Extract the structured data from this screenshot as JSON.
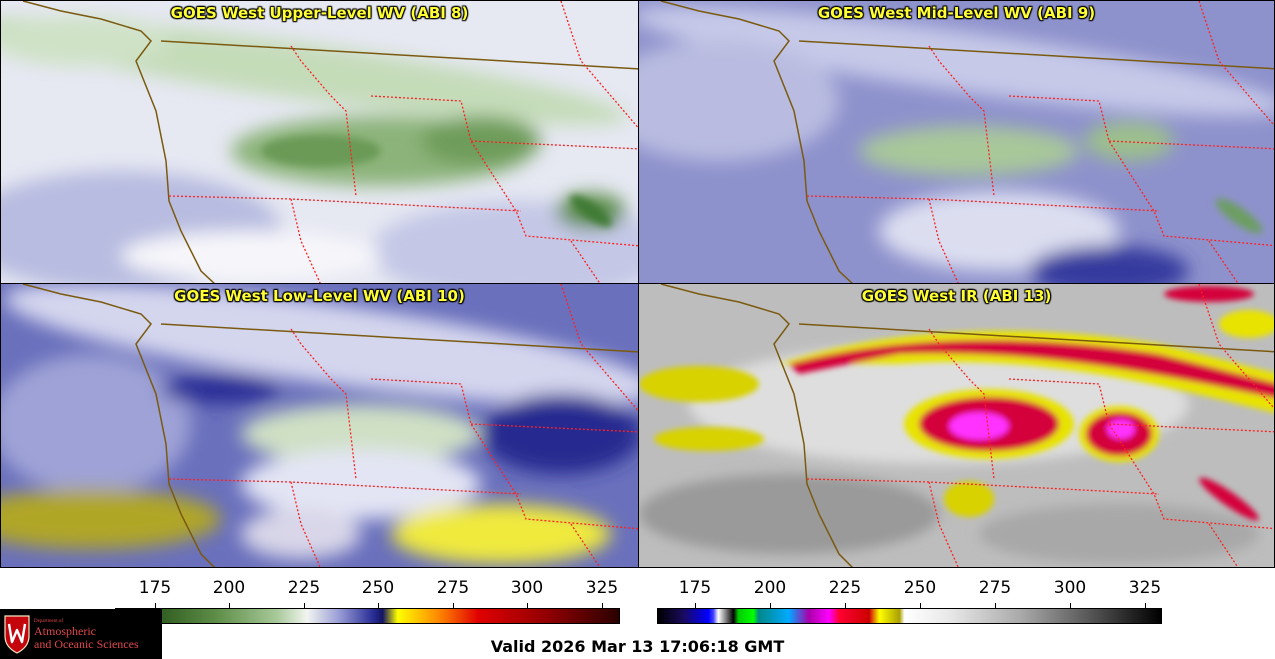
{
  "panels": [
    {
      "id": "p1",
      "title": "GOES West Upper-Level WV (ABI 8)",
      "palette": "wv",
      "theme": "upper"
    },
    {
      "id": "p2",
      "title": "GOES West Mid-Level WV (ABI 9)",
      "palette": "wv",
      "theme": "mid"
    },
    {
      "id": "p3",
      "title": "GOES West Low-Level WV (ABI 10)",
      "palette": "wv",
      "theme": "low"
    },
    {
      "id": "p4",
      "title": "GOES West IR (ABI 13)",
      "palette": "ir",
      "theme": "ir"
    }
  ],
  "colorbars": [
    {
      "palette": "wv",
      "ticks": [
        "175",
        "200",
        "225",
        "250",
        "275",
        "300",
        "325"
      ]
    },
    {
      "palette": "ir",
      "ticks": [
        "175",
        "200",
        "225",
        "250",
        "275",
        "300",
        "325"
      ]
    }
  ],
  "colors": {
    "title_text": "#ffff33",
    "coastline": "#7a5a10",
    "state_border": "#ff2020",
    "wv_moist": "#4e8a3a",
    "wv_dry": "#2a2f96",
    "ir_cold": "#d4003a",
    "ir_warm": "#c8c8c8"
  },
  "logo": {
    "line1": "Department of",
    "line2": "Atmospheric",
    "line3": "and Oceanic Sciences"
  },
  "footer": {
    "valid": "Valid 2026 Mar 13 17:06:18 GMT"
  }
}
